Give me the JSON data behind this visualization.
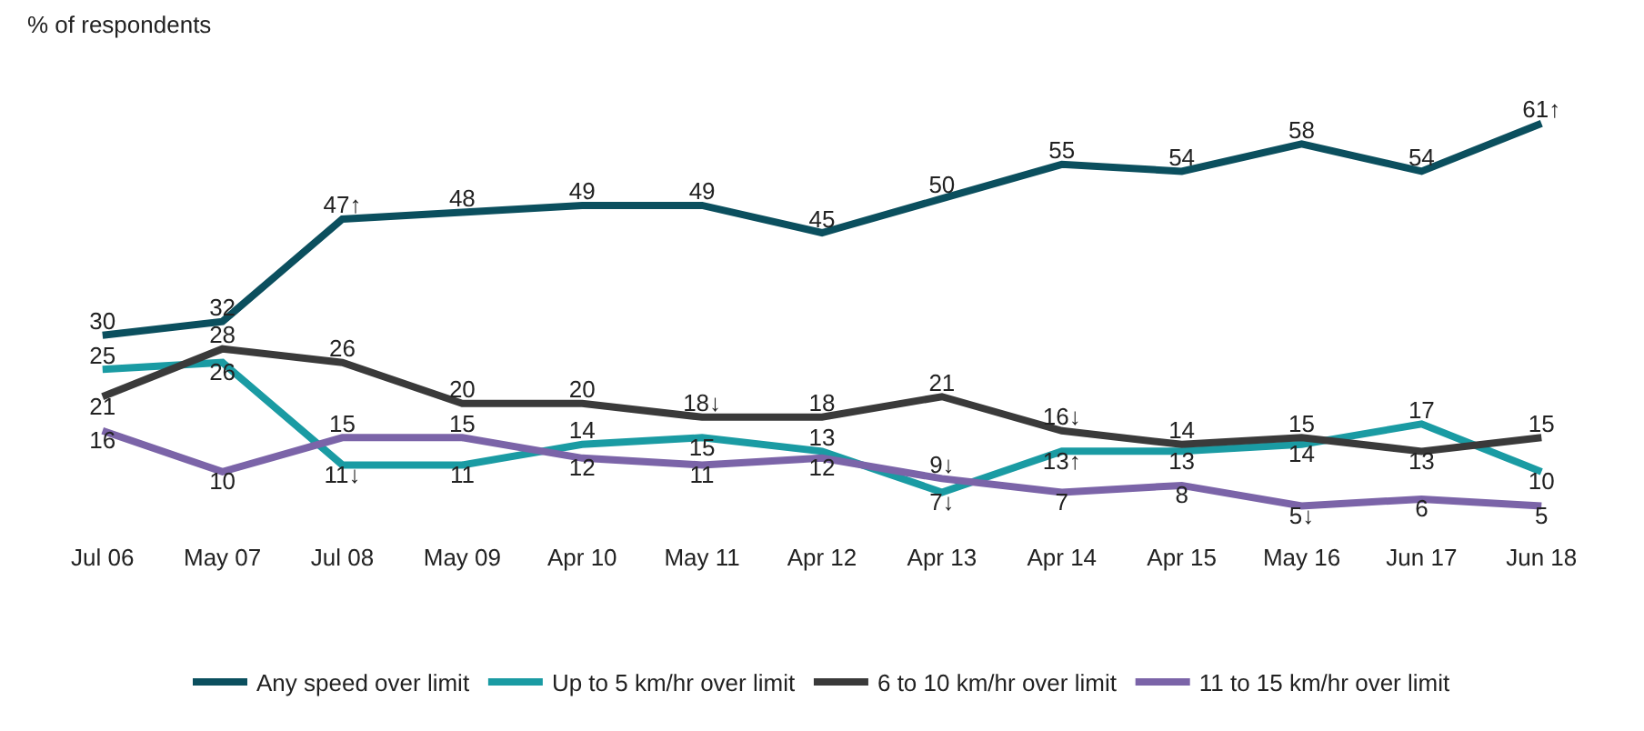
{
  "chart_data": {
    "type": "line",
    "ylabel": "% of respondents",
    "categories": [
      "Jul 06",
      "May 07",
      "Jul 08",
      "May 09",
      "Apr 10",
      "May 11",
      "Apr 12",
      "Apr 13",
      "Apr 14",
      "Apr 15",
      "May 16",
      "Jun 17",
      "Jun 18"
    ],
    "series": [
      {
        "name": "Any speed over limit",
        "color": "#0b4f5e",
        "values": [
          30,
          32,
          47,
          48,
          49,
          49,
          45,
          50,
          55,
          54,
          58,
          54,
          61
        ],
        "value_labels": [
          "30",
          "32",
          "47↑",
          "48",
          "49",
          "49",
          "45",
          "50",
          "55",
          "54",
          "58",
          "54",
          "61↑"
        ]
      },
      {
        "name": "Up to 5 km/hr over limit",
        "color": "#1a9ba3",
        "values": [
          25,
          26,
          11,
          11,
          14,
          15,
          13,
          7,
          13,
          13,
          14,
          17,
          10
        ],
        "value_labels": [
          "25",
          "26",
          "11↓",
          "11",
          "14",
          "15",
          "13",
          "7↓",
          "13↑",
          "13",
          "14",
          "17",
          "10"
        ]
      },
      {
        "name": "6 to 10 km/hr over limit",
        "color": "#3a3a3a",
        "values": [
          21,
          28,
          26,
          20,
          20,
          18,
          18,
          21,
          16,
          14,
          15,
          13,
          15
        ],
        "value_labels": [
          "21",
          "28",
          "26",
          "20",
          "20",
          "18↓",
          "18",
          "21",
          "16↓",
          "14",
          "15",
          "13",
          "15"
        ]
      },
      {
        "name": "11 to 15 km/hr over limit",
        "color": "#7b64a8",
        "values": [
          16,
          10,
          15,
          15,
          12,
          11,
          12,
          9,
          7,
          8,
          5,
          6,
          5
        ],
        "value_labels": [
          "16",
          "10",
          "15",
          "15",
          "12",
          "11",
          "12",
          "9↓",
          "7",
          "8",
          "5↓",
          "6",
          "5"
        ]
      }
    ],
    "legend": "bottom",
    "marker": "none",
    "line_style": "solid"
  }
}
